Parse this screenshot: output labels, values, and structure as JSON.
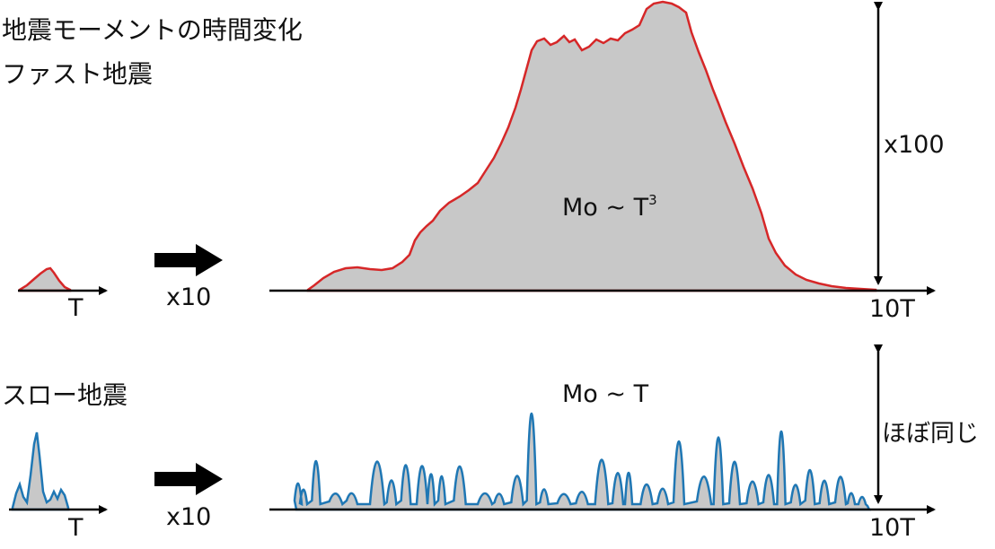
{
  "title": "地震モーメントの時間変化",
  "fast": {
    "label": "ファスト地震",
    "small_axis_label": "T",
    "scale_label": "x10",
    "large_axis_label": "10T",
    "amplitude_label": "x100",
    "scaling_base": "Mo ~ T",
    "scaling_exponent": "3"
  },
  "slow": {
    "label": "スロー地震",
    "small_axis_label": "T",
    "scale_label": "x10",
    "large_axis_label": "10T",
    "amplitude_label": "ほぼ同じ",
    "scaling_text": "Mo ~ T"
  },
  "colors": {
    "fast_line": "#d62728",
    "slow_line": "#1f77b4",
    "fill": "#c8c8c8",
    "axis": "#000000"
  }
}
